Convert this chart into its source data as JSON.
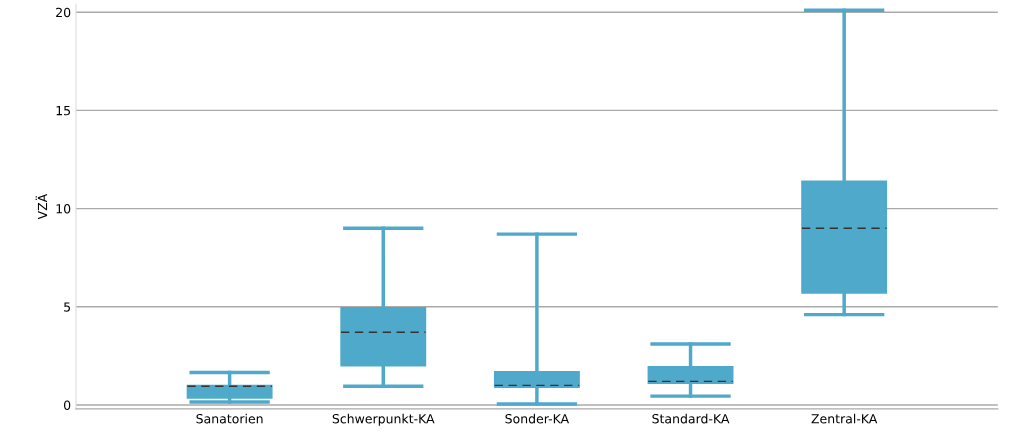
{
  "chart_data": {
    "type": "box",
    "ylabel": "VZÄ",
    "categories": [
      "Sanatorien",
      "Schwerpunkt-KA",
      "Sonder-KA",
      "Standard-KA",
      "Zentral-KA"
    ],
    "boxes": [
      {
        "low": 0.15,
        "q1": 0.35,
        "median": 0.95,
        "q3": 1.0,
        "high": 1.65
      },
      {
        "low": 0.95,
        "q1": 2.0,
        "median": 3.7,
        "q3": 4.95,
        "high": 9.0
      },
      {
        "low": 0.05,
        "q1": 0.9,
        "median": 1.0,
        "q3": 1.7,
        "high": 8.7
      },
      {
        "low": 0.45,
        "q1": 1.1,
        "median": 1.2,
        "q3": 1.95,
        "high": 3.1
      },
      {
        "low": 4.6,
        "q1": 5.7,
        "median": 9.0,
        "q3": 11.4,
        "high": 20.1
      }
    ],
    "color": "#4fa9cb",
    "ylim": [
      -0.2,
      20.4
    ],
    "yticks": [
      0,
      5,
      10,
      15,
      20
    ],
    "grid": "y",
    "legend": false
  }
}
